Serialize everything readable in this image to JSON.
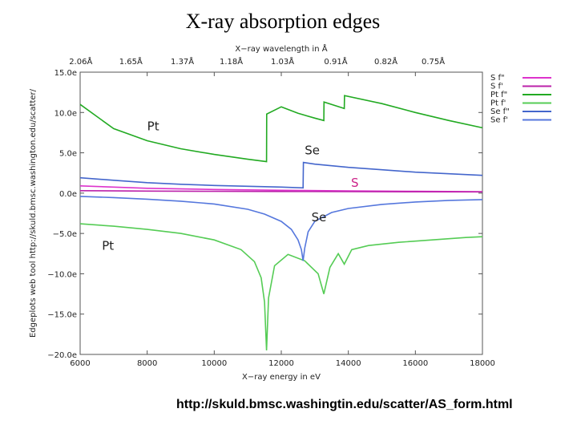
{
  "page": {
    "title": "X-ray absorption edges",
    "source_url": "http://skuld.bmsc.washingtin.edu/scatter/AS_form.html"
  },
  "chart_data": {
    "type": "line",
    "xlabel": "X−ray energy in eV",
    "x2label": "X−ray wavelength in Å",
    "ylabel": "Edgeplots web tool http://skuld.bmsc.washington.edu/scatter/",
    "xlim": [
      6000,
      18000
    ],
    "ylim": [
      -20,
      15
    ],
    "x_ticks": [
      6000,
      8000,
      10000,
      12000,
      14000,
      16000,
      18000
    ],
    "x_tick_labels": [
      "6000",
      "8000",
      "10000",
      "12000",
      "14000",
      "16000",
      "18000"
    ],
    "y_ticks": [
      15,
      10,
      5,
      0,
      -5,
      -10,
      -15,
      -20
    ],
    "y_tick_labels": [
      "15.0e",
      "10.0e",
      "5.0e",
      "0.0e",
      "−5.0e",
      "−10.0e",
      "−15.0e",
      "−20.0e"
    ],
    "x2_ticks": [
      6018,
      7514,
      9050,
      10508,
      12037,
      13625,
      15120,
      16531
    ],
    "x2_tick_labels": [
      "2.06Å",
      "1.65Å",
      "1.37Å",
      "1.18Å",
      "1.03Å",
      "0.91Å",
      "0.82Å",
      "0.75Å"
    ],
    "legend_position": "right",
    "series": [
      {
        "name": "S f\"",
        "color": "#dd33cc",
        "x": [
          6000,
          8000,
          10000,
          12000,
          14000,
          16000,
          18000
        ],
        "y": [
          0.9,
          0.6,
          0.45,
          0.35,
          0.28,
          0.22,
          0.18
        ]
      },
      {
        "name": "S f'",
        "color": "#bb22aa",
        "x": [
          6000,
          8000,
          10000,
          12000,
          14000,
          16000,
          18000
        ],
        "y": [
          0.3,
          0.25,
          0.22,
          0.2,
          0.18,
          0.16,
          0.15
        ]
      },
      {
        "name": "Pt f\"",
        "color": "#22aa22",
        "x": [
          6000,
          7000,
          8000,
          9000,
          10000,
          11000,
          11560,
          11565,
          12000,
          12500,
          13000,
          13270,
          13275,
          13800,
          13880,
          13885,
          15000,
          16000,
          17000,
          18000
        ],
        "y": [
          11.0,
          8.0,
          6.5,
          5.5,
          4.8,
          4.2,
          3.9,
          9.8,
          10.7,
          9.9,
          9.3,
          9.0,
          11.3,
          10.6,
          10.5,
          12.1,
          11.1,
          10.0,
          9.0,
          8.1
        ]
      },
      {
        "name": "Pt f'",
        "color": "#55cc55",
        "x": [
          6000,
          7000,
          8000,
          9000,
          10000,
          10800,
          11200,
          11400,
          11500,
          11560,
          11620,
          11800,
          12200,
          12700,
          13100,
          13270,
          13450,
          13700,
          13880,
          14100,
          14600,
          15500,
          16500,
          17500,
          18000
        ],
        "y": [
          -3.8,
          -4.1,
          -4.5,
          -5.0,
          -5.8,
          -7.0,
          -8.5,
          -10.5,
          -13.5,
          -19.5,
          -13.0,
          -9.0,
          -7.6,
          -8.4,
          -10.0,
          -12.5,
          -9.2,
          -7.5,
          -8.8,
          -7.0,
          -6.5,
          -6.1,
          -5.8,
          -5.5,
          -5.4
        ]
      },
      {
        "name": "Se f\"",
        "color": "#4466cc",
        "x": [
          6000,
          7000,
          8000,
          9000,
          10000,
          11000,
          12000,
          12650,
          12660,
          13000,
          14000,
          15000,
          16000,
          17000,
          18000
        ],
        "y": [
          1.9,
          1.6,
          1.3,
          1.1,
          0.95,
          0.85,
          0.75,
          0.65,
          3.8,
          3.6,
          3.2,
          2.9,
          2.6,
          2.4,
          2.2
        ]
      },
      {
        "name": "Se f'",
        "color": "#5577dd",
        "x": [
          6000,
          7000,
          8000,
          9000,
          10000,
          11000,
          11500,
          12000,
          12300,
          12500,
          12600,
          12650,
          12700,
          12800,
          13000,
          13500,
          14000,
          15000,
          16000,
          17000,
          18000
        ],
        "y": [
          -0.4,
          -0.55,
          -0.75,
          -1.0,
          -1.35,
          -2.0,
          -2.6,
          -3.5,
          -4.5,
          -5.8,
          -7.0,
          -8.4,
          -6.8,
          -4.8,
          -3.5,
          -2.4,
          -1.9,
          -1.4,
          -1.1,
          -0.9,
          -0.8
        ]
      }
    ],
    "annotations": [
      {
        "text": "Pt",
        "x": 8000,
        "y": 7.8,
        "color": "#222222"
      },
      {
        "text": "Se",
        "x": 12700,
        "y": 4.8,
        "color": "#222222"
      },
      {
        "text": "S",
        "x": 14080,
        "y": 0.8,
        "color": "#cc2288"
      },
      {
        "text": "Se",
        "x": 12900,
        "y": -3.5,
        "color": "#222222"
      },
      {
        "text": "Pt",
        "x": 6650,
        "y": -7.0,
        "color": "#222222"
      }
    ]
  }
}
